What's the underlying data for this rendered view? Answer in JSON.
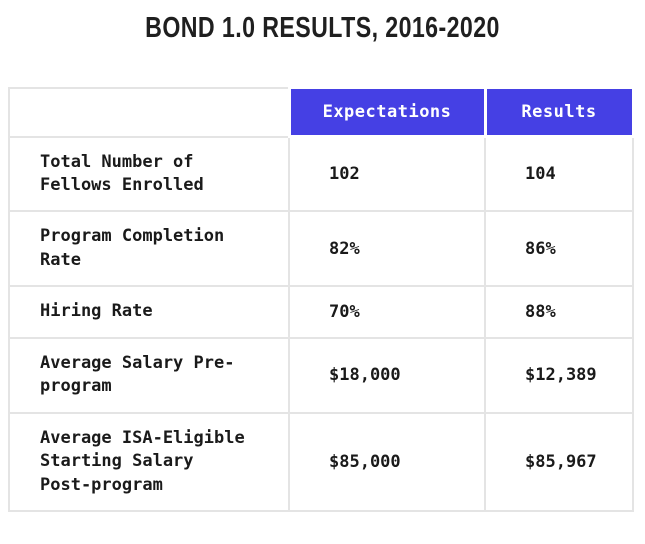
{
  "title": "BOND 1.0 RESULTS, 2016-2020",
  "colors": {
    "header_bg": "#4540e4",
    "header_text": "#ffffff",
    "body_text": "#1a1a1a",
    "border": "#e4e4e4",
    "page_bg": "#ffffff"
  },
  "table": {
    "columns": [
      "Expectations",
      "Results"
    ],
    "rows": [
      {
        "label": "Total Number of\nFellows Enrolled",
        "expectations": "102",
        "results": "104"
      },
      {
        "label": "Program Completion\nRate",
        "expectations": "82%",
        "results": "86%"
      },
      {
        "label": "Hiring Rate",
        "expectations": "70%",
        "results": "88%"
      },
      {
        "label": "Average Salary Pre-\nprogram",
        "expectations": "$18,000",
        "results": "$12,389"
      },
      {
        "label": "Average ISA-Eligible\nStarting Salary\nPost-program",
        "expectations": "$85,000",
        "results": "$85,967"
      }
    ]
  },
  "chart_data": {
    "type": "table",
    "title": "BOND 1.0 RESULTS, 2016-2020",
    "row_labels": [
      "Total Number of Fellows Enrolled",
      "Program Completion Rate",
      "Hiring Rate",
      "Average Salary Pre-program",
      "Average ISA-Eligible Starting Salary Post-program"
    ],
    "columns": [
      "Expectations",
      "Results"
    ],
    "series": [
      {
        "name": "Expectations",
        "values": [
          "102",
          "82%",
          "70%",
          "$18,000",
          "$85,000"
        ]
      },
      {
        "name": "Results",
        "values": [
          "104",
          "86%",
          "88%",
          "$12,389",
          "$85,967"
        ]
      }
    ]
  }
}
